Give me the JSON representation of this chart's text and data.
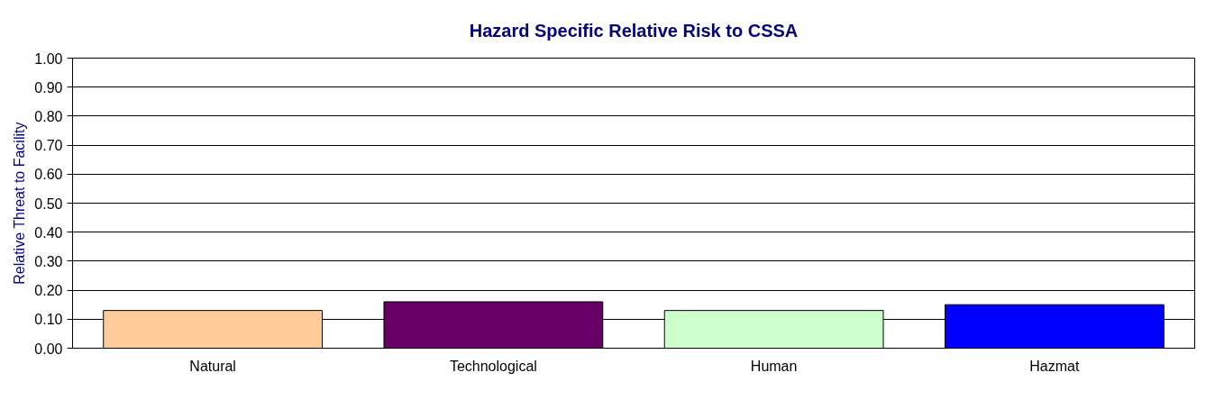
{
  "chart_data": {
    "type": "bar",
    "title": "Hazard Specific Relative Risk to CSSA",
    "ylabel": "Relative Threat to Facility",
    "categories": [
      "Natural",
      "Technological",
      "Human",
      "Hazmat"
    ],
    "values": [
      0.13,
      0.16,
      0.13,
      0.15
    ],
    "colors": [
      "#ffcc99",
      "#660066",
      "#ccffcc",
      "#0000ff"
    ],
    "ylim": [
      0,
      1
    ],
    "yticks": [
      {
        "value": 0,
        "label": "0.00"
      },
      {
        "value": 0.1,
        "label": "0.10"
      },
      {
        "value": 0.2,
        "label": "0.20"
      },
      {
        "value": 0.3,
        "label": "0.30"
      },
      {
        "value": 0.4,
        "label": "0.40"
      },
      {
        "value": 0.5,
        "label": "0.50"
      },
      {
        "value": 0.6,
        "label": "0.60"
      },
      {
        "value": 0.7,
        "label": "0.70"
      },
      {
        "value": 0.8,
        "label": "0.80"
      },
      {
        "value": 0.9,
        "label": "0.90"
      },
      {
        "value": 1.0,
        "label": "1.00"
      }
    ],
    "grid": "y"
  }
}
